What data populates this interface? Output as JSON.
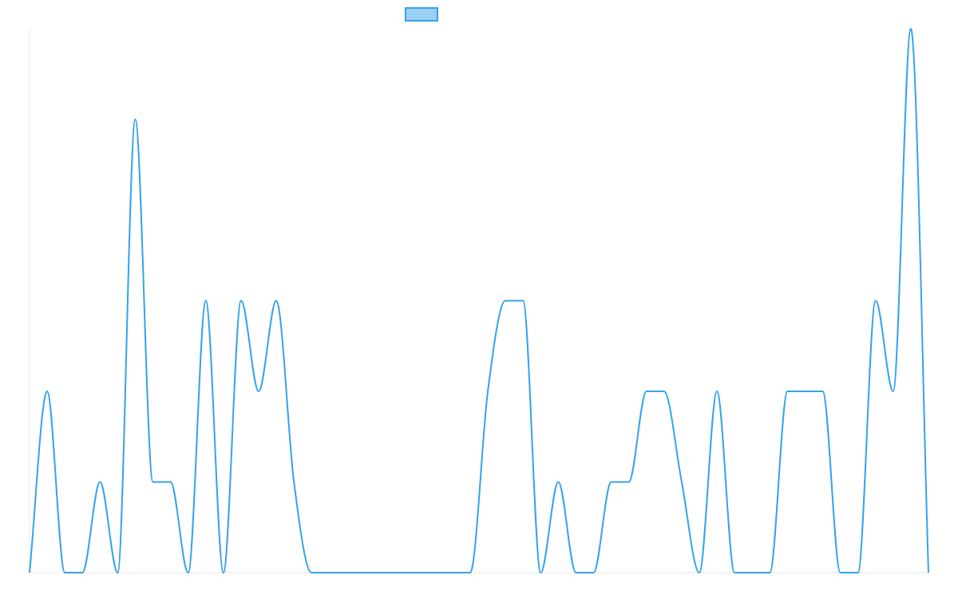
{
  "chart_data": {
    "type": "line",
    "title": "",
    "xlabel": "",
    "ylabel": "",
    "legend": {
      "position": "top",
      "entries": [
        {
          "label": "",
          "color": "#36A2EB",
          "fill": "#9AD0F5"
        }
      ]
    },
    "grid": false,
    "ylim": [
      0,
      6
    ],
    "x": [
      0,
      1,
      2,
      3,
      4,
      5,
      6,
      7,
      8,
      9,
      10,
      11,
      12,
      13,
      14,
      15,
      16,
      17,
      18,
      19,
      20,
      21,
      22,
      23,
      24,
      25,
      26,
      27,
      28,
      29,
      30,
      31,
      32,
      33,
      34,
      35,
      36,
      37,
      38,
      39,
      40,
      41,
      42,
      43,
      44,
      45,
      46,
      47,
      48,
      49,
      50,
      51
    ],
    "series": [
      {
        "name": "",
        "color": "#36A2EB",
        "values": [
          0,
          2,
          0,
          0,
          1,
          0,
          5,
          1,
          1,
          0,
          3,
          0,
          3,
          2,
          3,
          1,
          0,
          0,
          0,
          0,
          0,
          0,
          0,
          0,
          0,
          0,
          2,
          3,
          3,
          0,
          1,
          0,
          0,
          1,
          1,
          2,
          2,
          1,
          0,
          2,
          0,
          0,
          0,
          2,
          2,
          2,
          0,
          0,
          3,
          2,
          6,
          0
        ]
      }
    ]
  }
}
